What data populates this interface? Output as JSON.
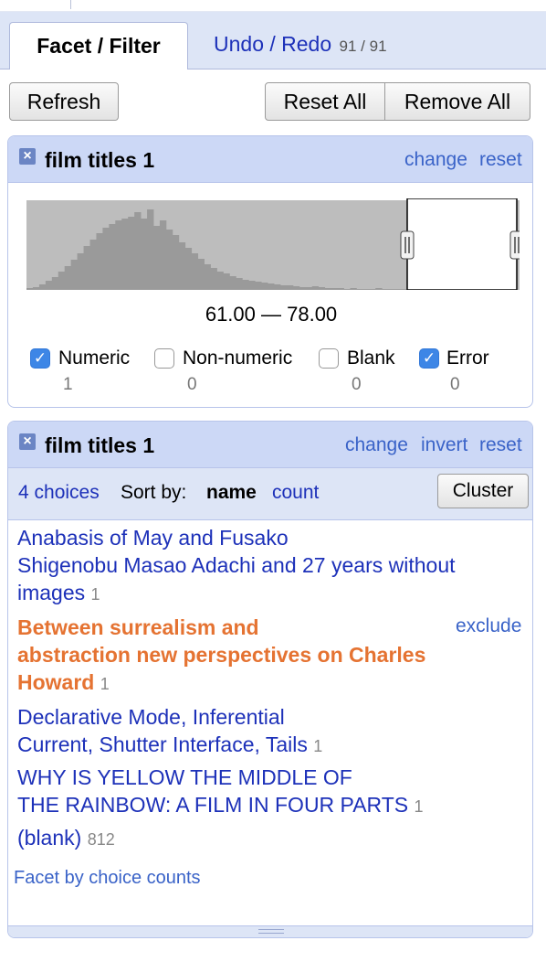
{
  "tabs": {
    "facet_filter": "Facet / Filter",
    "undo_redo": "Undo / Redo",
    "undo_count": "91 / 91"
  },
  "toolbar": {
    "refresh": "Refresh",
    "reset_all": "Reset All",
    "remove_all": "Remove All"
  },
  "numeric_facet": {
    "title": "film titles 1",
    "change": "change",
    "reset": "reset",
    "range_text": "61.00 — 78.00",
    "range_selection": [
      61.0,
      78.0
    ],
    "histogram_bins": [
      2,
      3,
      6,
      10,
      14,
      20,
      26,
      33,
      40,
      48,
      55,
      62,
      68,
      72,
      76,
      78,
      80,
      85,
      78,
      88,
      70,
      76,
      66,
      60,
      52,
      46,
      40,
      34,
      28,
      24,
      20,
      18,
      15,
      13,
      11,
      10,
      9,
      8,
      7,
      6,
      5,
      5,
      4,
      3,
      3,
      4,
      3,
      2,
      2,
      2,
      1,
      2,
      1,
      1,
      1,
      2,
      1,
      1,
      1,
      1
    ],
    "histogram_color": "#b0b0b0",
    "checkboxes": [
      {
        "label": "Numeric",
        "count": "1",
        "checked": true
      },
      {
        "label": "Non-numeric",
        "count": "0",
        "checked": false
      },
      {
        "label": "Blank",
        "count": "0",
        "checked": false
      },
      {
        "label": "Error",
        "count": "0",
        "checked": true
      }
    ]
  },
  "text_facet": {
    "title": "film titles 1",
    "change": "change",
    "invert": "invert",
    "reset": "reset",
    "choices_count": "4 choices",
    "sort_by_label": "Sort by:",
    "sort_name": "name",
    "sort_count": "count",
    "cluster": "Cluster",
    "choices": [
      {
        "line1": "Anabasis of May and Fusako",
        "line2": "Shigenobu Masao Adachi and 27 years without",
        "line3": "images",
        "count": "1",
        "selected": false
      },
      {
        "line1": "Between surrealism and",
        "line2": "abstraction new perspectives on Charles",
        "line3": "Howard",
        "count": "1",
        "selected": true,
        "action": "exclude"
      },
      {
        "line1": "Declarative Mode, Inferential",
        "line2": "Current, Shutter Interface, Tails",
        "count": "1",
        "selected": false
      },
      {
        "line1": "WHY IS YELLOW THE MIDDLE OF",
        "line2": "THE RAINBOW: A FILM IN FOUR PARTS",
        "count": "1",
        "selected": false
      },
      {
        "line1": "(blank)",
        "count": "812",
        "selected": false
      }
    ],
    "facet_by_counts": "Facet by choice counts"
  },
  "colors": {
    "link_blue": "#1d31b9",
    "selected_orange": "#e57332",
    "header_bg": "#ccd8f6"
  }
}
